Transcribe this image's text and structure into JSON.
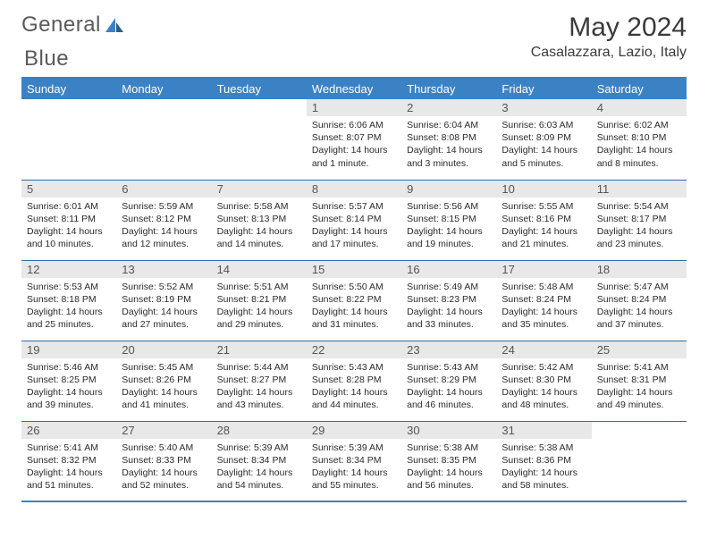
{
  "logo": {
    "part1": "General",
    "part2": "Blue"
  },
  "title": "May 2024",
  "location": "Casalazzara, Lazio, Italy",
  "headers": [
    "Sunday",
    "Monday",
    "Tuesday",
    "Wednesday",
    "Thursday",
    "Friday",
    "Saturday"
  ],
  "colors": {
    "accent": "#3b82c4",
    "header_text": "#ffffff",
    "daynum_bg": "#e8e8e8",
    "daynum_text": "#555555",
    "body_text": "#2b2b2b",
    "page_bg": "#ffffff"
  },
  "weeks": [
    [
      {
        "empty": true
      },
      {
        "empty": true
      },
      {
        "empty": true
      },
      {
        "num": "1",
        "sunrise": "Sunrise: 6:06 AM",
        "sunset": "Sunset: 8:07 PM",
        "daylight": "Daylight: 14 hours and 1 minute."
      },
      {
        "num": "2",
        "sunrise": "Sunrise: 6:04 AM",
        "sunset": "Sunset: 8:08 PM",
        "daylight": "Daylight: 14 hours and 3 minutes."
      },
      {
        "num": "3",
        "sunrise": "Sunrise: 6:03 AM",
        "sunset": "Sunset: 8:09 PM",
        "daylight": "Daylight: 14 hours and 5 minutes."
      },
      {
        "num": "4",
        "sunrise": "Sunrise: 6:02 AM",
        "sunset": "Sunset: 8:10 PM",
        "daylight": "Daylight: 14 hours and 8 minutes."
      }
    ],
    [
      {
        "num": "5",
        "sunrise": "Sunrise: 6:01 AM",
        "sunset": "Sunset: 8:11 PM",
        "daylight": "Daylight: 14 hours and 10 minutes."
      },
      {
        "num": "6",
        "sunrise": "Sunrise: 5:59 AM",
        "sunset": "Sunset: 8:12 PM",
        "daylight": "Daylight: 14 hours and 12 minutes."
      },
      {
        "num": "7",
        "sunrise": "Sunrise: 5:58 AM",
        "sunset": "Sunset: 8:13 PM",
        "daylight": "Daylight: 14 hours and 14 minutes."
      },
      {
        "num": "8",
        "sunrise": "Sunrise: 5:57 AM",
        "sunset": "Sunset: 8:14 PM",
        "daylight": "Daylight: 14 hours and 17 minutes."
      },
      {
        "num": "9",
        "sunrise": "Sunrise: 5:56 AM",
        "sunset": "Sunset: 8:15 PM",
        "daylight": "Daylight: 14 hours and 19 minutes."
      },
      {
        "num": "10",
        "sunrise": "Sunrise: 5:55 AM",
        "sunset": "Sunset: 8:16 PM",
        "daylight": "Daylight: 14 hours and 21 minutes."
      },
      {
        "num": "11",
        "sunrise": "Sunrise: 5:54 AM",
        "sunset": "Sunset: 8:17 PM",
        "daylight": "Daylight: 14 hours and 23 minutes."
      }
    ],
    [
      {
        "num": "12",
        "sunrise": "Sunrise: 5:53 AM",
        "sunset": "Sunset: 8:18 PM",
        "daylight": "Daylight: 14 hours and 25 minutes."
      },
      {
        "num": "13",
        "sunrise": "Sunrise: 5:52 AM",
        "sunset": "Sunset: 8:19 PM",
        "daylight": "Daylight: 14 hours and 27 minutes."
      },
      {
        "num": "14",
        "sunrise": "Sunrise: 5:51 AM",
        "sunset": "Sunset: 8:21 PM",
        "daylight": "Daylight: 14 hours and 29 minutes."
      },
      {
        "num": "15",
        "sunrise": "Sunrise: 5:50 AM",
        "sunset": "Sunset: 8:22 PM",
        "daylight": "Daylight: 14 hours and 31 minutes."
      },
      {
        "num": "16",
        "sunrise": "Sunrise: 5:49 AM",
        "sunset": "Sunset: 8:23 PM",
        "daylight": "Daylight: 14 hours and 33 minutes."
      },
      {
        "num": "17",
        "sunrise": "Sunrise: 5:48 AM",
        "sunset": "Sunset: 8:24 PM",
        "daylight": "Daylight: 14 hours and 35 minutes."
      },
      {
        "num": "18",
        "sunrise": "Sunrise: 5:47 AM",
        "sunset": "Sunset: 8:24 PM",
        "daylight": "Daylight: 14 hours and 37 minutes."
      }
    ],
    [
      {
        "num": "19",
        "sunrise": "Sunrise: 5:46 AM",
        "sunset": "Sunset: 8:25 PM",
        "daylight": "Daylight: 14 hours and 39 minutes."
      },
      {
        "num": "20",
        "sunrise": "Sunrise: 5:45 AM",
        "sunset": "Sunset: 8:26 PM",
        "daylight": "Daylight: 14 hours and 41 minutes."
      },
      {
        "num": "21",
        "sunrise": "Sunrise: 5:44 AM",
        "sunset": "Sunset: 8:27 PM",
        "daylight": "Daylight: 14 hours and 43 minutes."
      },
      {
        "num": "22",
        "sunrise": "Sunrise: 5:43 AM",
        "sunset": "Sunset: 8:28 PM",
        "daylight": "Daylight: 14 hours and 44 minutes."
      },
      {
        "num": "23",
        "sunrise": "Sunrise: 5:43 AM",
        "sunset": "Sunset: 8:29 PM",
        "daylight": "Daylight: 14 hours and 46 minutes."
      },
      {
        "num": "24",
        "sunrise": "Sunrise: 5:42 AM",
        "sunset": "Sunset: 8:30 PM",
        "daylight": "Daylight: 14 hours and 48 minutes."
      },
      {
        "num": "25",
        "sunrise": "Sunrise: 5:41 AM",
        "sunset": "Sunset: 8:31 PM",
        "daylight": "Daylight: 14 hours and 49 minutes."
      }
    ],
    [
      {
        "num": "26",
        "sunrise": "Sunrise: 5:41 AM",
        "sunset": "Sunset: 8:32 PM",
        "daylight": "Daylight: 14 hours and 51 minutes."
      },
      {
        "num": "27",
        "sunrise": "Sunrise: 5:40 AM",
        "sunset": "Sunset: 8:33 PM",
        "daylight": "Daylight: 14 hours and 52 minutes."
      },
      {
        "num": "28",
        "sunrise": "Sunrise: 5:39 AM",
        "sunset": "Sunset: 8:34 PM",
        "daylight": "Daylight: 14 hours and 54 minutes."
      },
      {
        "num": "29",
        "sunrise": "Sunrise: 5:39 AM",
        "sunset": "Sunset: 8:34 PM",
        "daylight": "Daylight: 14 hours and 55 minutes."
      },
      {
        "num": "30",
        "sunrise": "Sunrise: 5:38 AM",
        "sunset": "Sunset: 8:35 PM",
        "daylight": "Daylight: 14 hours and 56 minutes."
      },
      {
        "num": "31",
        "sunrise": "Sunrise: 5:38 AM",
        "sunset": "Sunset: 8:36 PM",
        "daylight": "Daylight: 14 hours and 58 minutes."
      },
      {
        "empty": true
      }
    ]
  ]
}
